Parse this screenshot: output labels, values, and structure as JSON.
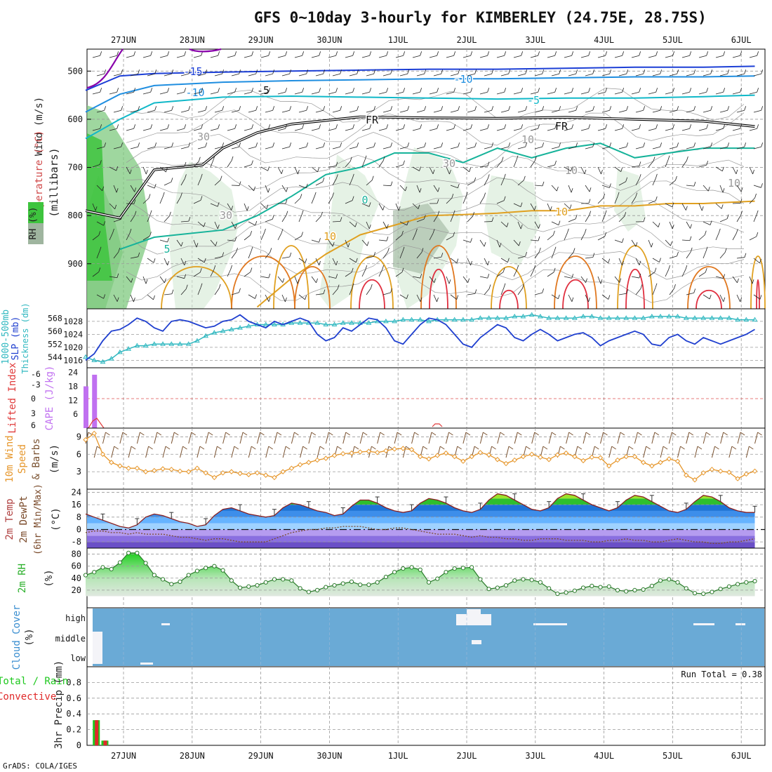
{
  "title": "GFS 0~10day 3-hourly for KIMBERLEY (24.75E, 28.75S)",
  "credit": "GrADS: COLA/IGES",
  "date_labels": [
    "27JUN",
    "28JUN",
    "29JUN",
    "30JUN",
    "1JUL",
    "2JUL",
    "3JUL",
    "4JUL",
    "5JUL",
    "6JUL"
  ],
  "colors": {
    "rh_green": "#3ec43e",
    "temp_contour_purple": "#8800aa",
    "wind_blue": "#1c3fd6",
    "contour_teal": "#00b0a0",
    "contour_orange": "#e0a020",
    "slp_blue": "#1f3fcf",
    "thickness_cyan": "#30b8c0",
    "cape_violet": "#c070f0",
    "li_red": "#e03a3a",
    "wind_orange": "#e6962a",
    "barb_brown": "#7a5230",
    "rh2m_green": "#2bd42b",
    "cloud_blue": "#6aaad6",
    "precip_green": "#1ec81e",
    "precip_red": "#e02a2a"
  },
  "chart_data": [
    {
      "id": "upper_air",
      "type": "heatmap",
      "ylabel": "(millibars)",
      "panel_labels": [
        "Wind (m/s)",
        "Temperature (°C)",
        "RH (%)"
      ],
      "yticks": [
        500,
        600,
        700,
        800,
        900
      ],
      "ylim": [
        1000,
        450
      ],
      "contour_labels": [
        "-15",
        "-10",
        "-10",
        "-5",
        "-5",
        "FR",
        "FR",
        "0",
        "5",
        "10",
        "-10",
        "30",
        "30",
        "30",
        "10",
        "10",
        "10"
      ],
      "series": [
        {
          "name": "-15",
          "x": [
            0,
            0.5,
            1,
            2,
            3,
            4,
            5,
            6,
            7,
            8,
            9,
            9.75
          ],
          "y": [
            540,
            510,
            505,
            502,
            500,
            498,
            496,
            496,
            494,
            492,
            492,
            490
          ]
        },
        {
          "name": "-10",
          "x": [
            0,
            0.5,
            1,
            2,
            3,
            4,
            5,
            6,
            7,
            8,
            9,
            9.75
          ],
          "y": [
            585,
            548,
            530,
            523,
            520,
            518,
            516,
            516,
            514,
            512,
            512,
            510
          ]
        },
        {
          "name": "-5",
          "x": [
            0,
            0.5,
            1,
            2,
            3,
            4,
            5,
            6,
            7,
            8,
            9,
            9.75
          ],
          "y": [
            640,
            600,
            566,
            554,
            552,
            554,
            556,
            558,
            556,
            556,
            553,
            550
          ]
        },
        {
          "name": "FR",
          "x": [
            0,
            0.5,
            1,
            1.7,
            2,
            2.5,
            3,
            4,
            5,
            6,
            7,
            8,
            9,
            9.75
          ],
          "y": [
            790,
            805,
            705,
            695,
            660,
            628,
            610,
            595,
            597,
            598,
            596,
            600,
            604,
            615
          ]
        },
        {
          "name": "0",
          "x": [
            0.5,
            1,
            2,
            2.5,
            3,
            3.5,
            4,
            4.5,
            5,
            5.5,
            6,
            6.5,
            7,
            7.5,
            8,
            9,
            9.75
          ],
          "y": [
            870,
            845,
            830,
            800,
            760,
            715,
            700,
            670,
            670,
            690,
            660,
            680,
            660,
            650,
            680,
            660,
            660
          ]
        },
        {
          "name": "10",
          "x": [
            2.5,
            3,
            3.5,
            4,
            4.5,
            5,
            5.5,
            6,
            6.5,
            7,
            7.5,
            8,
            8.5,
            9,
            9.75
          ],
          "y": [
            990,
            930,
            880,
            840,
            820,
            800,
            798,
            795,
            790,
            790,
            780,
            780,
            775,
            775,
            770
          ]
        }
      ]
    },
    {
      "id": "slp_thickness",
      "type": "line",
      "ylabel": "SLP (mb) / 1000-500mb Thickness (dm)",
      "yticks_slp": [
        1016,
        1020,
        1024,
        1028
      ],
      "yticks_thickness": [
        544,
        552,
        560,
        568
      ],
      "ylim_slp": [
        1015,
        1031
      ],
      "x": [
        0,
        0.125,
        0.25,
        0.375,
        0.5,
        0.625,
        0.75,
        0.875,
        1,
        1.125,
        1.25,
        1.375,
        1.5,
        1.625,
        1.75,
        1.875,
        2,
        2.125,
        2.25,
        2.375,
        2.5,
        2.625,
        2.75,
        2.875,
        3,
        3.125,
        3.25,
        3.375,
        3.5,
        3.625,
        3.75,
        3.875,
        4,
        4.125,
        4.25,
        4.375,
        4.5,
        4.625,
        4.75,
        4.875,
        5,
        5.125,
        5.25,
        5.375,
        5.5,
        5.625,
        5.75,
        5.875,
        6,
        6.125,
        6.25,
        6.375,
        6.5,
        6.625,
        6.75,
        6.875,
        7,
        7.125,
        7.25,
        7.375,
        7.5,
        7.625,
        7.75,
        7.875,
        8,
        8.125,
        8.25,
        8.375,
        8.5,
        8.625,
        8.75,
        8.875,
        9,
        9.125,
        9.25,
        9.375,
        9.5,
        9.625,
        9.75
      ],
      "series": [
        {
          "name": "SLP",
          "values": [
            1016,
            1018,
            1022,
            1025,
            1025.5,
            1027,
            1029,
            1028,
            1026,
            1025,
            1028,
            1028.5,
            1028,
            1027,
            1026,
            1026.5,
            1028,
            1028.5,
            1030,
            1028,
            1027,
            1026,
            1028,
            1027,
            1028,
            1029,
            1028,
            1024,
            1022,
            1023,
            1026,
            1025,
            1027,
            1029,
            1028.5,
            1026,
            1022,
            1021,
            1024,
            1027,
            1029,
            1028.5,
            1027,
            1024,
            1021,
            1020,
            1023,
            1025,
            1027,
            1026,
            1023,
            1022,
            1024,
            1025.5,
            1024,
            1022,
            1023,
            1024,
            1024.5,
            1023,
            1020.5,
            1022,
            1023,
            1024,
            1025,
            1024,
            1021,
            1020.5,
            1023,
            1024,
            1022,
            1021,
            1023,
            1022,
            1021,
            1022,
            1023,
            1024,
            1025.5
          ]
        },
        {
          "name": "Thickness",
          "values": [
            544,
            542,
            541,
            543,
            547,
            549,
            551,
            551,
            552,
            552,
            552,
            552,
            552,
            554,
            557,
            559,
            560,
            561,
            562,
            563,
            564,
            564,
            564,
            564,
            565,
            565,
            565,
            565,
            564,
            564,
            565,
            565,
            565,
            565,
            566,
            566,
            566,
            567,
            567,
            567,
            566,
            567,
            567,
            567,
            567,
            567,
            568,
            568,
            568,
            568,
            569,
            569,
            570,
            569,
            568,
            568,
            568,
            568,
            569,
            569,
            568,
            568,
            568,
            568,
            568,
            568,
            569,
            569,
            569,
            569,
            568,
            568,
            568,
            568,
            568,
            568,
            567,
            567,
            567
          ]
        }
      ]
    },
    {
      "id": "cape_li",
      "type": "bar",
      "ylabel": "CAPE (J/kg) / Lifted Index",
      "yticks_cape": [
        6,
        12,
        18,
        24
      ],
      "yticks_li": [
        -6,
        -3,
        0,
        3,
        6
      ],
      "x": [
        0,
        0.125,
        0.25
      ],
      "series": [
        {
          "name": "CAPE",
          "values": [
            18,
            23,
            0
          ]
        }
      ]
    },
    {
      "id": "wind10m",
      "type": "line",
      "ylabel": "10m Wind Speed (m/s) & Barbs",
      "yticks": [
        3,
        6,
        9
      ],
      "ylim": [
        0,
        10.5
      ],
      "x": [
        0,
        0.125,
        0.25,
        0.375,
        0.5,
        0.625,
        0.75,
        0.875,
        1,
        1.125,
        1.25,
        1.375,
        1.5,
        1.625,
        1.75,
        1.875,
        2,
        2.125,
        2.25,
        2.375,
        2.5,
        2.625,
        2.75,
        2.875,
        3,
        3.125,
        3.25,
        3.375,
        3.5,
        3.625,
        3.75,
        3.875,
        4,
        4.125,
        4.25,
        4.375,
        4.5,
        4.625,
        4.75,
        4.875,
        5,
        5.125,
        5.25,
        5.375,
        5.5,
        5.625,
        5.75,
        5.875,
        6,
        6.125,
        6.25,
        6.375,
        6.5,
        6.625,
        6.75,
        6.875,
        7,
        7.125,
        7.25,
        7.375,
        7.5,
        7.625,
        7.75,
        7.875,
        8,
        8.125,
        8.25,
        8.375,
        8.5,
        8.625,
        8.75,
        8.875,
        9,
        9.125,
        9.25,
        9.375,
        9.5,
        9.625,
        9.75
      ],
      "series": [
        {
          "name": "Speed",
          "values": [
            8.5,
            9.6,
            6,
            4.6,
            4.0,
            3.6,
            3.6,
            3.0,
            3.2,
            3.5,
            3.4,
            3.1,
            3.0,
            3.6,
            2.8,
            2.0,
            2.8,
            3.0,
            2.7,
            2.5,
            2.8,
            2.4,
            2.0,
            3.0,
            3.6,
            4.2,
            4.6,
            5.0,
            5.3,
            5.8,
            6.1,
            6.2,
            6.4,
            6.5,
            6.3,
            6.6,
            6.9,
            7.0,
            6.8,
            5.6,
            5.2,
            5.8,
            6.2,
            5.6,
            4.8,
            5.6,
            6.3,
            5.9,
            5.1,
            4.4,
            5.0,
            5.6,
            6.0,
            5.5,
            5.1,
            5.9,
            6.2,
            5.6,
            4.9,
            5.5,
            5.4,
            4.0,
            5.0,
            5.6,
            5.6,
            4.6,
            4.0,
            4.6,
            5.2,
            4.8,
            2.4,
            1.6,
            2.8,
            3.4,
            3.1,
            2.9,
            1.8,
            2.6,
            3.1
          ]
        }
      ]
    },
    {
      "id": "temp2m",
      "type": "area",
      "ylabel": "2m Temp / 2m DewPt (6hr Min/Max) (°C)",
      "yticks": [
        -8,
        0,
        8,
        16,
        24
      ],
      "ylim": [
        -12,
        26
      ],
      "x": [
        0,
        0.125,
        0.25,
        0.375,
        0.5,
        0.625,
        0.75,
        0.875,
        1,
        1.125,
        1.25,
        1.375,
        1.5,
        1.625,
        1.75,
        1.875,
        2,
        2.125,
        2.25,
        2.375,
        2.5,
        2.625,
        2.75,
        2.875,
        3,
        3.125,
        3.25,
        3.375,
        3.5,
        3.625,
        3.75,
        3.875,
        4,
        4.125,
        4.25,
        4.375,
        4.5,
        4.625,
        4.75,
        4.875,
        5,
        5.125,
        5.25,
        5.375,
        5.5,
        5.625,
        5.75,
        5.875,
        6,
        6.125,
        6.25,
        6.375,
        6.5,
        6.625,
        6.75,
        6.875,
        7,
        7.125,
        7.25,
        7.375,
        7.5,
        7.625,
        7.75,
        7.875,
        8,
        8.125,
        8.25,
        8.375,
        8.5,
        8.625,
        8.75,
        8.875,
        9,
        9.125,
        9.25,
        9.375,
        9.5,
        9.625,
        9.75
      ],
      "series": [
        {
          "name": "2m Temp",
          "values": [
            10,
            8,
            6,
            4,
            2,
            1,
            3,
            8,
            10,
            9,
            7,
            5,
            4,
            2,
            3,
            9,
            13,
            14,
            12,
            10,
            9,
            8,
            9,
            14,
            17,
            16,
            14,
            12,
            11,
            9,
            10,
            15,
            19,
            19,
            17,
            14,
            12,
            11,
            12,
            17,
            20,
            19,
            17,
            14,
            12,
            11,
            13,
            19,
            23,
            22,
            19,
            16,
            13,
            12,
            14,
            20,
            23,
            22,
            19,
            16,
            14,
            12,
            14,
            19,
            22,
            21,
            18,
            15,
            12,
            11,
            13,
            18,
            22,
            21,
            18,
            14,
            12,
            11,
            11
          ]
        },
        {
          "name": "2m DewPt",
          "values": [
            -2,
            -1,
            -1,
            -2,
            -2,
            -3,
            -2,
            -3,
            -3,
            -3,
            -4,
            -5,
            -5,
            -6,
            -7,
            -6,
            -6,
            -7,
            -8,
            -8,
            -8,
            -8,
            -6,
            -4,
            -2,
            -1,
            0,
            0,
            1,
            1,
            2,
            2,
            2,
            1,
            0,
            0,
            1,
            1,
            0,
            -1,
            -2,
            -3,
            -3,
            -3,
            -4,
            -5,
            -4,
            -5,
            -5,
            -6,
            -6,
            -7,
            -7,
            -6,
            -6,
            -6,
            -7,
            -7,
            -7,
            -8,
            -8,
            -7,
            -7,
            -6,
            -7,
            -7,
            -8,
            -8,
            -7,
            -6,
            -7,
            -8,
            -8,
            -9,
            -9,
            -8,
            -8,
            -7,
            -6
          ]
        }
      ]
    },
    {
      "id": "rh2m",
      "type": "area",
      "ylabel": "2m RH (%)",
      "yticks": [
        20,
        40,
        60,
        80
      ],
      "ylim": [
        0,
        90
      ],
      "x": [
        0,
        0.125,
        0.25,
        0.375,
        0.5,
        0.625,
        0.75,
        0.875,
        1,
        1.125,
        1.25,
        1.375,
        1.5,
        1.625,
        1.75,
        1.875,
        2,
        2.125,
        2.25,
        2.375,
        2.5,
        2.625,
        2.75,
        2.875,
        3,
        3.125,
        3.25,
        3.375,
        3.5,
        3.625,
        3.75,
        3.875,
        4,
        4.125,
        4.25,
        4.375,
        4.5,
        4.625,
        4.75,
        4.875,
        5,
        5.125,
        5.25,
        5.375,
        5.5,
        5.625,
        5.75,
        5.875,
        6,
        6.125,
        6.25,
        6.375,
        6.5,
        6.625,
        6.75,
        6.875,
        7,
        7.125,
        7.25,
        7.375,
        7.5,
        7.625,
        7.75,
        7.875,
        8,
        8.125,
        8.25,
        8.375,
        8.5,
        8.625,
        8.75,
        8.875,
        9,
        9.125,
        9.25,
        9.375,
        9.5,
        9.625,
        9.75
      ],
      "series": [
        {
          "name": "2m RH",
          "values": [
            45,
            50,
            58,
            55,
            66,
            82,
            82,
            65,
            45,
            38,
            30,
            34,
            45,
            52,
            57,
            60,
            53,
            36,
            24,
            26,
            28,
            33,
            38,
            38,
            36,
            23,
            17,
            20,
            25,
            28,
            31,
            34,
            29,
            29,
            33,
            42,
            50,
            56,
            58,
            54,
            33,
            39,
            50,
            56,
            57,
            58,
            38,
            22,
            24,
            28,
            36,
            38,
            37,
            33,
            23,
            14,
            16,
            19,
            24,
            27,
            25,
            26,
            20,
            18,
            20,
            21,
            27,
            36,
            38,
            33,
            23,
            15,
            14,
            17,
            22,
            26,
            30,
            33,
            35
          ]
        }
      ]
    },
    {
      "id": "cloud",
      "type": "heatmap",
      "ylabel": "Cloud Cover (%)",
      "levels": [
        "high",
        "middle",
        "low"
      ]
    },
    {
      "id": "precip",
      "type": "bar",
      "ylabel": "3hr Precip (mm)",
      "legend": [
        "Total / Rain",
        "Convective"
      ],
      "annotation": "Run Total = 0.38",
      "yticks": [
        0,
        0.2,
        0.4,
        0.6,
        0.8
      ],
      "ylim": [
        0,
        1.0
      ],
      "x": [
        0.125,
        0.25
      ],
      "series": [
        {
          "name": "Total / Rain",
          "values": [
            0.32,
            0.06
          ]
        },
        {
          "name": "Convective",
          "values": [
            0.32,
            0.06
          ]
        }
      ]
    }
  ]
}
